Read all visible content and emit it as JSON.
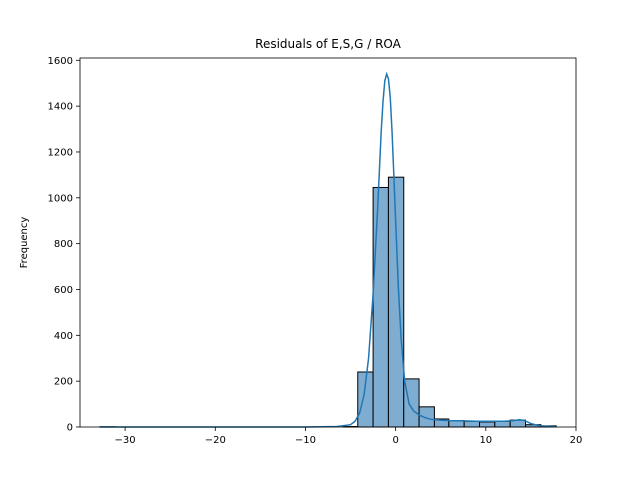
{
  "chart_data": {
    "type": "bar",
    "subtype": "histogram-with-kde",
    "title": "Residuals of E,S,G / ROA",
    "xlabel": "",
    "ylabel": "Frequency",
    "xlim": [
      -35,
      20
    ],
    "ylim": [
      0,
      1610
    ],
    "xticks": [
      -30,
      -20,
      -10,
      0,
      10,
      20
    ],
    "yticks": [
      0,
      200,
      400,
      600,
      800,
      1000,
      1200,
      1400,
      1600
    ],
    "grid": false,
    "legend": "none",
    "bin_edges": [
      -32.8,
      -31.1,
      -29.4,
      -27.8,
      -26.1,
      -24.4,
      -22.7,
      -21.0,
      -19.3,
      -17.6,
      -15.9,
      -14.3,
      -12.6,
      -10.9,
      -9.2,
      -7.5,
      -5.8,
      -4.2,
      -2.5,
      -0.8,
      0.9,
      2.6,
      4.3,
      5.9,
      7.6,
      9.3,
      11.0,
      12.7,
      14.4,
      16.1,
      17.8
    ],
    "counts": [
      1,
      0,
      0,
      0,
      0,
      0,
      0,
      0,
      0,
      0,
      0,
      0,
      0,
      0,
      0,
      0,
      2,
      240,
      1045,
      1090,
      210,
      88,
      35,
      28,
      25,
      22,
      25,
      30,
      10,
      5
    ],
    "bar_fill": "#7fadd1",
    "bar_edge": "#000000",
    "kde": {
      "color": "#1f77b4",
      "x": [
        -32.8,
        -10,
        -6.5,
        -5,
        -4.5,
        -4,
        -3.5,
        -3,
        -2.5,
        -2,
        -1.8,
        -1.6,
        -1.4,
        -1.2,
        -1.0,
        -0.8,
        -0.6,
        -0.4,
        -0.2,
        0,
        0.3,
        0.6,
        1,
        1.5,
        2,
        2.5,
        3,
        3.5,
        4,
        5,
        6,
        7,
        8,
        9,
        10,
        11,
        12,
        13,
        13.7,
        14.3,
        15,
        16,
        17.8
      ],
      "y": [
        0,
        0,
        2,
        10,
        25,
        60,
        140,
        300,
        580,
        950,
        1120,
        1290,
        1420,
        1510,
        1540,
        1520,
        1440,
        1290,
        1100,
        900,
        610,
        390,
        200,
        100,
        70,
        55,
        45,
        38,
        33,
        30,
        28,
        27,
        26,
        25,
        25,
        25,
        25,
        27,
        32,
        28,
        15,
        5,
        1
      ]
    }
  }
}
